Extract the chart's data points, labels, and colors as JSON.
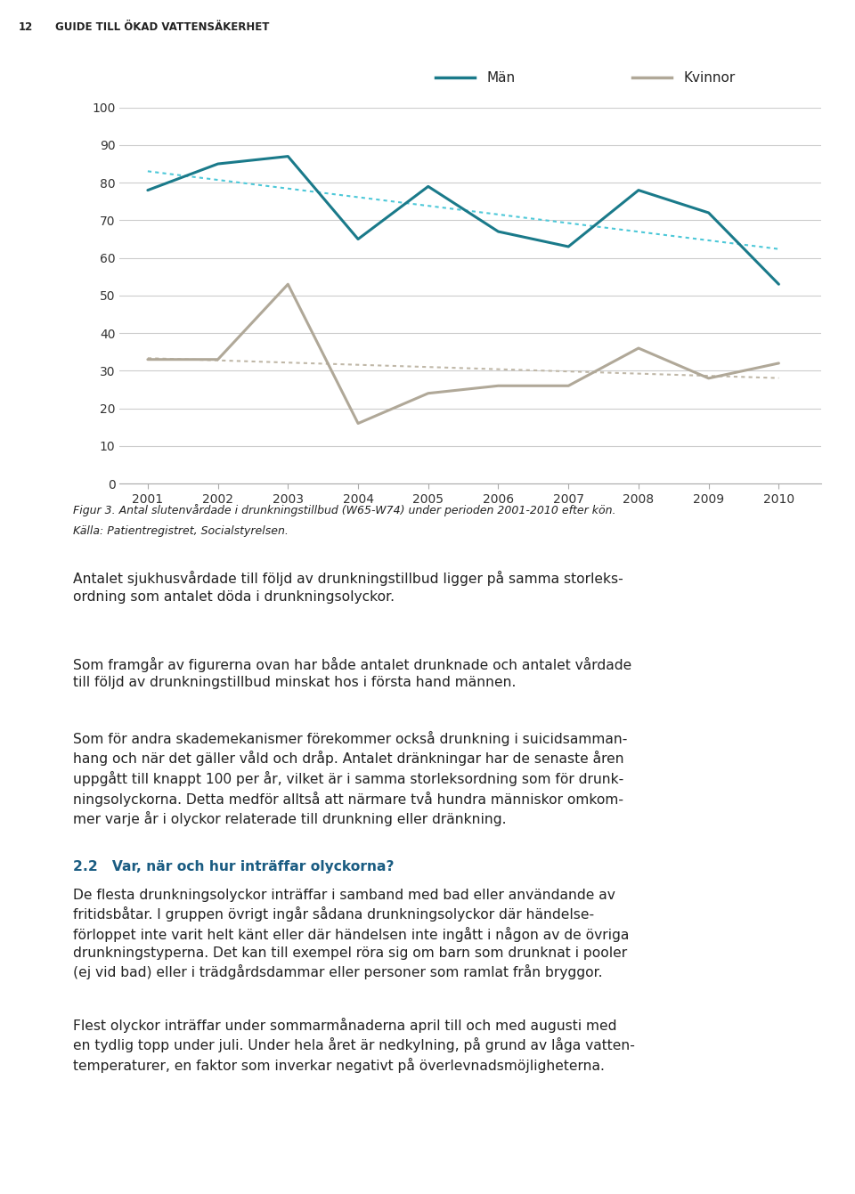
{
  "years": [
    2001,
    2002,
    2003,
    2004,
    2005,
    2006,
    2007,
    2008,
    2009,
    2010
  ],
  "man": [
    78,
    85,
    87,
    65,
    79,
    67,
    63,
    78,
    72,
    53
  ],
  "kvinnor": [
    33,
    33,
    53,
    16,
    24,
    26,
    26,
    36,
    28,
    32
  ],
  "man_color": "#1a7a8a",
  "kvinnor_color": "#b0a898",
  "trend_man_color": "#4dc8d8",
  "trend_kvinnor_color": "#c0b8a8",
  "ylim": [
    0,
    100
  ],
  "yticks": [
    0,
    10,
    20,
    30,
    40,
    50,
    60,
    70,
    80,
    90,
    100
  ],
  "legend_man": "Män",
  "legend_kvinnor": "Kvinnor",
  "header_num": "12",
  "header_text": "GUIDE TILL ÖKAD VATTENSÄKERHET",
  "figure_caption_line1": "Figur 3. Antal slutenvårdade i drunkningstillbud (W65-W74) under perioden 2001-2010 efter kön.",
  "figure_caption_line2": "Källa: Patientregistret, Socialstyrelsen.",
  "para1": "Antalet sjukhusvårdade till följd av drunkningstillbud ligger på samma storleks-\nordning som antalet döda i drunkningsolyckor.",
  "para2": "Som framgår av figurerna ovan har både antalet drunknade och antalet vårdade\ntill följd av drunkningstillbud minskat hos i första hand männen.",
  "para3": "Som för andra skademekanismer förekommer också drunkning i suicidsamman-\nhang och när det gäller våld och dråp. Antalet dränkningar har de senaste åren\nuppgått till knappt 100 per år, vilket är i samma storleksordning som för drunk-\nningsolyckorna. Detta medför alltså att närmare två hundra människor omkom-\nmer varje år i olyckor relaterade till drunkning eller dränkning.",
  "section_header": "2.2   Var, när och hur inträffar olyckorna?",
  "para4": "De flesta drunkningsolyckor inträffar i samband med bad eller användande av\nfritidsbåtar. I gruppen övrigt ingår sådana drunkningsolyckor där händelse-\nförloppet inte varit helt känt eller där händelsen inte ingått i någon av de övriga\ndrunkningstyperna. Det kan till exempel röra sig om barn som drunknat i pooler\n(ej vid bad) eller i trädgårdsdammar eller personer som ramlat från bryggor.",
  "para5": "Flest olyckor inträffar under sommarmånaderna april till och med augusti med\nen tydlig topp under juli. Under hela året är nedkylning, på grund av låga vatten-\ntemperaturer, en faktor som inverkar negativt på överlevnadsmöjligheterna.",
  "section_color": "#1a5c82",
  "text_color": "#222222",
  "bg_color": "#ffffff"
}
